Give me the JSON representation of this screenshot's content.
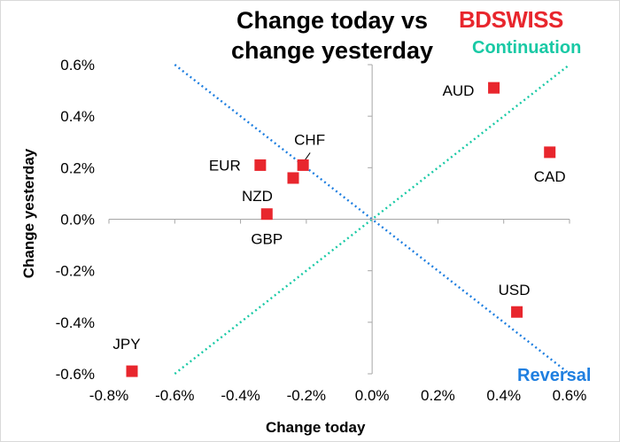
{
  "title_line1": "Change today vs",
  "title_line2": "change yesterday",
  "logo": {
    "part1": "BD",
    "part2": "SWISS"
  },
  "annotations": {
    "continuation": "Continuation",
    "reversal": "Reversal"
  },
  "colors": {
    "marker": "#e8262d",
    "continuation_line": "#19c9a5",
    "reversal_line": "#1f7fe0",
    "logo": "#e8262d"
  },
  "chart_data": {
    "type": "scatter",
    "title": "Change today vs change yesterday",
    "xlabel": "Change today",
    "ylabel": "Change yesterday",
    "xlim": [
      -0.8,
      0.6
    ],
    "ylim": [
      -0.6,
      0.6
    ],
    "x_ticks": [
      -0.8,
      -0.6,
      -0.4,
      -0.2,
      0.0,
      0.2,
      0.4,
      0.6
    ],
    "y_ticks": [
      -0.6,
      -0.4,
      -0.2,
      0.0,
      0.2,
      0.4,
      0.6
    ],
    "x_tick_labels": [
      "-0.8%",
      "-0.6%",
      "-0.4%",
      "-0.2%",
      "0.0%",
      "0.2%",
      "0.4%",
      "0.6%"
    ],
    "y_tick_labels": [
      "-0.6%",
      "-0.4%",
      "-0.2%",
      "0.0%",
      "0.2%",
      "0.4%",
      "0.6%"
    ],
    "grid": false,
    "points": [
      {
        "label": "AUD",
        "x": 0.37,
        "y": 0.51
      },
      {
        "label": "CAD",
        "x": 0.54,
        "y": 0.26
      },
      {
        "label": "CHF",
        "x": -0.21,
        "y": 0.21
      },
      {
        "label": "EUR",
        "x": -0.34,
        "y": 0.21
      },
      {
        "label": "NZD",
        "x": -0.24,
        "y": 0.16
      },
      {
        "label": "GBP",
        "x": -0.32,
        "y": 0.02
      },
      {
        "label": "USD",
        "x": 0.44,
        "y": -0.36
      },
      {
        "label": "JPY",
        "x": -0.73,
        "y": -0.59
      }
    ],
    "reference_lines": [
      {
        "name": "Continuation",
        "from": [
          -0.6,
          -0.6
        ],
        "to": [
          0.6,
          0.6
        ]
      },
      {
        "name": "Reversal",
        "from": [
          -0.6,
          0.6
        ],
        "to": [
          0.6,
          -0.6
        ]
      }
    ]
  }
}
